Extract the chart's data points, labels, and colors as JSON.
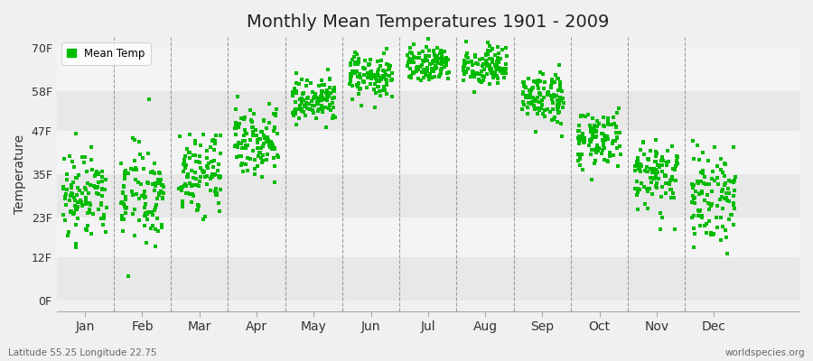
{
  "title": "Monthly Mean Temperatures 1901 - 2009",
  "ylabel": "Temperature",
  "subtitle_left": "Latitude 55.25 Longitude 22.75",
  "subtitle_right": "worldspecies.org",
  "legend_label": "Mean Temp",
  "marker_color": "#00bb00",
  "years": 109,
  "months": [
    "Jan",
    "Feb",
    "Mar",
    "Apr",
    "May",
    "Jun",
    "Jul",
    "Aug",
    "Sep",
    "Oct",
    "Nov",
    "Dec"
  ],
  "ytick_vals": [
    0,
    12,
    23,
    35,
    47,
    58,
    70
  ],
  "ytick_labels": [
    "0F",
    "12F",
    "23F",
    "35F",
    "47F",
    "58F",
    "70F"
  ],
  "ylim": [
    -3,
    73
  ],
  "xlim": [
    -0.5,
    12.5
  ],
  "mean_f": [
    28.0,
    28.5,
    34.0,
    44.0,
    54.0,
    61.0,
    65.0,
    64.0,
    55.0,
    44.0,
    34.0,
    28.5
  ],
  "std_f": [
    7.0,
    7.0,
    5.5,
    4.5,
    3.5,
    3.0,
    2.5,
    2.5,
    3.5,
    4.0,
    5.0,
    6.5
  ],
  "seed": 42,
  "band_colors": [
    "#e8e8e8",
    "#f4f4f4",
    "#e8e8e8",
    "#f4f4f4",
    "#e8e8e8",
    "#f4f4f4"
  ]
}
